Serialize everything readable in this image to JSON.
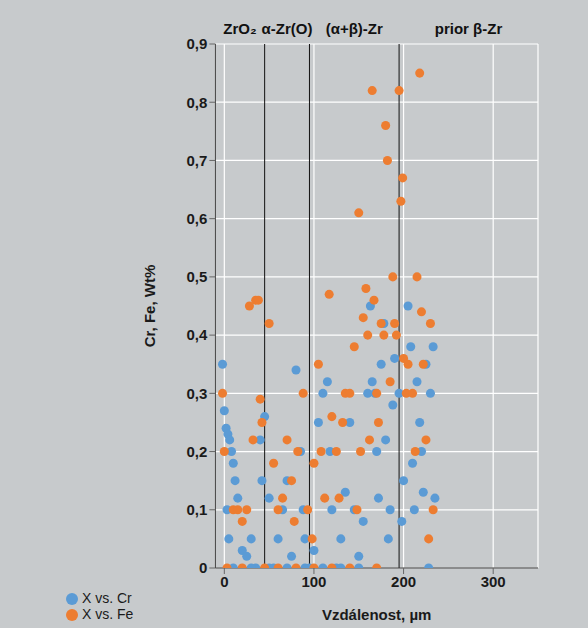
{
  "chart_data": {
    "type": "scatter",
    "x_label": "Vzdálenost, µm",
    "y_label": "Cr, Fe, Wt%",
    "xlim": [
      -10,
      350
    ],
    "xticks": [
      0,
      100,
      200,
      300
    ],
    "ylim": [
      0,
      0.9
    ],
    "yticks": [
      {
        "value": 0,
        "label": "0"
      },
      {
        "value": 0.1,
        "label": "0,1"
      },
      {
        "value": 0.2,
        "label": "0,2"
      },
      {
        "value": 0.3,
        "label": "0,3"
      },
      {
        "value": 0.4,
        "label": "0,4"
      },
      {
        "value": 0.5,
        "label": "0,5"
      },
      {
        "value": 0.6,
        "label": "0,6"
      },
      {
        "value": 0.7,
        "label": "0,7"
      },
      {
        "value": 0.8,
        "label": "0,8"
      },
      {
        "value": 0.9,
        "label": "0,9"
      }
    ],
    "grid": true,
    "legend": "bottom-left",
    "marker": "circle",
    "zones": [
      {
        "label": "ZrO₂",
        "from": -10,
        "to": 45
      },
      {
        "label": "α-Zr(O)",
        "from": 45,
        "to": 95
      },
      {
        "label": "(α+β)-Zr",
        "from": 95,
        "to": 195
      },
      {
        "label": "prior β-Zr",
        "from": 195,
        "to": 350
      }
    ],
    "series": [
      {
        "name": "X vs. Cr",
        "color": "#5b9bd5",
        "x": [
          -2,
          0,
          2,
          4,
          6,
          3,
          5,
          8,
          10,
          12,
          15,
          20,
          25,
          30,
          35,
          40,
          45,
          42,
          50,
          55,
          60,
          65,
          70,
          75,
          80,
          85,
          88,
          90,
          95,
          100,
          105,
          110,
          115,
          118,
          120,
          125,
          130,
          135,
          140,
          145,
          150,
          155,
          160,
          163,
          165,
          168,
          170,
          172,
          175,
          178,
          180,
          183,
          185,
          188,
          190,
          195,
          198,
          200,
          205,
          208,
          210,
          212,
          215,
          218,
          220,
          222,
          225,
          228,
          230,
          233,
          235,
          10,
          30,
          50,
          70,
          90,
          110,
          130,
          150
        ],
        "values": [
          0.35,
          0.27,
          0.24,
          0.23,
          0.22,
          0.1,
          0.05,
          0.2,
          0.18,
          0.15,
          0.12,
          0.03,
          0.02,
          0.05,
          0,
          0.22,
          0.26,
          0.15,
          0.12,
          0,
          0.05,
          0.1,
          0.15,
          0.02,
          0.34,
          0.2,
          0.1,
          0.05,
          0,
          0.03,
          0.25,
          0.3,
          0.32,
          0.2,
          0.1,
          0,
          0.05,
          0.13,
          0.25,
          0.1,
          0.02,
          0.08,
          0.3,
          0.45,
          0.32,
          0.3,
          0.2,
          0.12,
          0.35,
          0.42,
          0.22,
          0.05,
          0.1,
          0.28,
          0.36,
          0.3,
          0.08,
          0.15,
          0.45,
          0.38,
          0.18,
          0.1,
          0.32,
          0.25,
          0.2,
          0.13,
          0.35,
          0,
          0.3,
          0.38,
          0.12,
          0,
          0,
          0,
          0,
          0,
          0,
          0,
          0
        ]
      },
      {
        "name": "X vs. Fe",
        "color": "#ed7d31",
        "x": [
          -2,
          0,
          3,
          10,
          15,
          20,
          25,
          28,
          32,
          35,
          38,
          40,
          42,
          50,
          55,
          60,
          65,
          70,
          75,
          78,
          82,
          88,
          93,
          98,
          100,
          105,
          108,
          112,
          117,
          120,
          125,
          128,
          132,
          135,
          140,
          145,
          148,
          150,
          152,
          155,
          158,
          160,
          162,
          165,
          167,
          170,
          172,
          175,
          178,
          180,
          182,
          185,
          188,
          190,
          192,
          195,
          197,
          199,
          200,
          203,
          205,
          210,
          213,
          215,
          218,
          220,
          222,
          225,
          228,
          230,
          233,
          20,
          45,
          60,
          80,
          100,
          120,
          140,
          170
        ],
        "values": [
          0.3,
          0.2,
          0,
          0.1,
          0.1,
          0.08,
          0.1,
          0.45,
          0.22,
          0.46,
          0.46,
          0.29,
          0.25,
          0.42,
          0.18,
          0.1,
          0.12,
          0.22,
          0.15,
          0.08,
          0.2,
          0.3,
          0.1,
          0.05,
          0.18,
          0.35,
          0.2,
          0.12,
          0.47,
          0.26,
          0.2,
          0.12,
          0.25,
          0.3,
          0.3,
          0.38,
          0.1,
          0.61,
          0.2,
          0.43,
          0.48,
          0.4,
          0.22,
          0.82,
          0.46,
          0.3,
          0.25,
          0.42,
          0.4,
          0.76,
          0.7,
          0.32,
          0.5,
          0.42,
          0.4,
          0.82,
          0.63,
          0.67,
          0.36,
          0.3,
          0.35,
          0.3,
          0.2,
          0.5,
          0.85,
          0.44,
          0.35,
          0.22,
          0.05,
          0.42,
          0.1,
          0,
          0,
          0,
          0,
          0,
          0,
          0,
          0
        ]
      }
    ]
  }
}
